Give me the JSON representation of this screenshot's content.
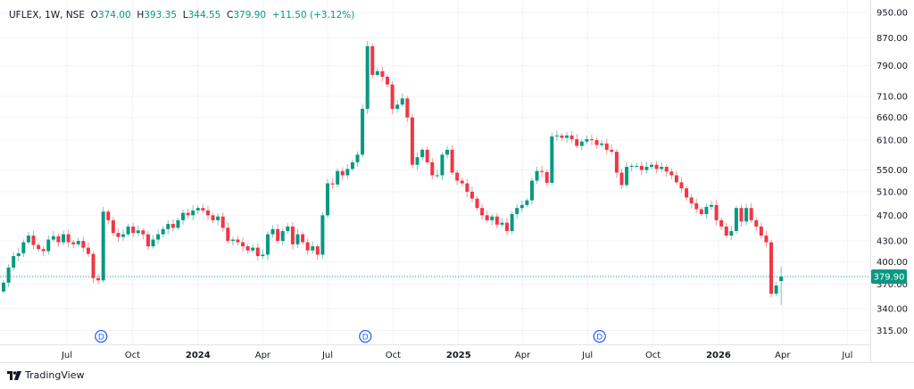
{
  "header": {
    "symbol": "UFLEX, 1W, NSE",
    "o_label": "O",
    "open": "374.00",
    "h_label": "H",
    "high": "393.35",
    "l_label": "L",
    "low": "344.55",
    "c_label": "C",
    "close": "379.90",
    "change": "+11.50 (+3.12%)"
  },
  "branding": {
    "logo_text": "TradingView"
  },
  "colors": {
    "up": "#089981",
    "down": "#f23645",
    "grid": "#f0f3fa",
    "dividend": "#2962ff"
  },
  "chart_data": {
    "type": "candlestick",
    "interval": "1W",
    "start_week": "2023-04-03",
    "y_scale": "log",
    "ylim": [
      300,
      980
    ],
    "grid": true,
    "closes": [
      372,
      392,
      408,
      412,
      428,
      438,
      424,
      418,
      415,
      432,
      437,
      428,
      440,
      428,
      425,
      430,
      420,
      411,
      378,
      375,
      476,
      462,
      442,
      436,
      440,
      452,
      442,
      446,
      440,
      422,
      432,
      440,
      448,
      456,
      450,
      462,
      474,
      470,
      478,
      482,
      478,
      470,
      462,
      468,
      450,
      430,
      432,
      428,
      422,
      416,
      420,
      408,
      410,
      440,
      448,
      430,
      445,
      452,
      425,
      440,
      428,
      416,
      422,
      410,
      470,
      525,
      523,
      548,
      540,
      552,
      565,
      580,
      680,
      845,
      765,
      775,
      760,
      740,
      680,
      690,
      705,
      660,
      560,
      575,
      590,
      565,
      540,
      540,
      580,
      590,
      545,
      530,
      525,
      510,
      498,
      482,
      470,
      462,
      468,
      455,
      458,
      445,
      472,
      482,
      487,
      495,
      530,
      548,
      546,
      526,
      618,
      620,
      615,
      620,
      612,
      598,
      607,
      612,
      610,
      600,
      603,
      590,
      586,
      545,
      522,
      556,
      558,
      558,
      550,
      556,
      560,
      552,
      556,
      547,
      540,
      527,
      516,
      500,
      490,
      480,
      472,
      484,
      487,
      462,
      452,
      438,
      445,
      482,
      460,
      482,
      462,
      452,
      438,
      428,
      358,
      368.4,
      379.9
    ],
    "last_candle": {
      "open": 374.0,
      "high": 393.35,
      "low": 344.55,
      "close": 379.9
    },
    "last_price_label": "379.90",
    "y_ticks": [
      "950.00",
      "870.00",
      "790.00",
      "710.00",
      "660.00",
      "610.00",
      "550.00",
      "510.00",
      "470.00",
      "430.00",
      "400.00",
      "370.00",
      "340.00",
      "315.00"
    ],
    "x_ticks": [
      {
        "label": "Jul",
        "date": "2023-07-01",
        "bold": false
      },
      {
        "label": "Oct",
        "date": "2023-10-01",
        "bold": false
      },
      {
        "label": "2024",
        "date": "2024-01-01",
        "bold": true
      },
      {
        "label": "Apr",
        "date": "2024-04-01",
        "bold": false
      },
      {
        "label": "Jul",
        "date": "2024-07-01",
        "bold": false
      },
      {
        "label": "Oct",
        "date": "2024-10-01",
        "bold": false
      },
      {
        "label": "2025",
        "date": "2025-01-01",
        "bold": true
      },
      {
        "label": "Apr",
        "date": "2025-04-01",
        "bold": false
      },
      {
        "label": "Jul",
        "date": "2025-07-01",
        "bold": false
      },
      {
        "label": "Oct",
        "date": "2025-10-01",
        "bold": false
      },
      {
        "label": "2026",
        "date": "2026-01-01",
        "bold": true
      },
      {
        "label": "Apr",
        "date": "2026-04-01",
        "bold": false
      },
      {
        "label": "Jul",
        "date": "2026-07-01",
        "bold": false
      }
    ],
    "dividend_markers": [
      {
        "label": "D",
        "date": "2023-08-18"
      },
      {
        "label": "D",
        "date": "2024-08-23"
      },
      {
        "label": "D",
        "date": "2025-07-18"
      }
    ]
  }
}
